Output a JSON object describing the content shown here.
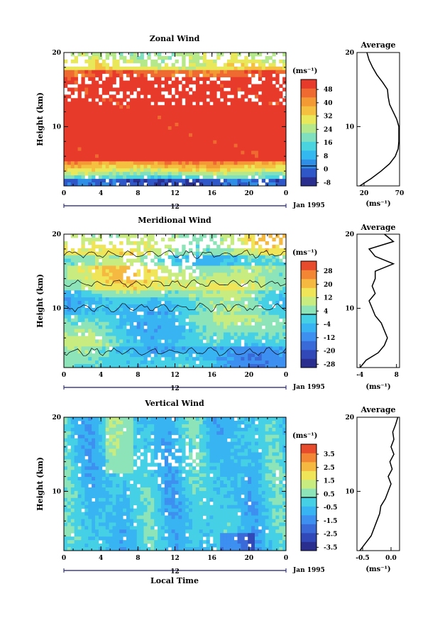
{
  "figure": {
    "xlabel": "Local Time",
    "date_label": "Jan 1995",
    "midday_marker": "12"
  },
  "colors": {
    "colorbar_zonal": [
      "#2a2f8f",
      "#2f57c8",
      "#2f8ee6",
      "#34b8f0",
      "#49d4e0",
      "#7fe0c0",
      "#b5e88a",
      "#e8e85a",
      "#f5c040",
      "#f49a35",
      "#ee6a30",
      "#e83a2a"
    ],
    "colorbar_meridional": [
      "#2a2f8f",
      "#3148b8",
      "#3a6ad8",
      "#3d8ff0",
      "#38b4f2",
      "#45d0e6",
      "#8ce4b8",
      "#c8ec80",
      "#f0e458",
      "#f5b840",
      "#f28634",
      "#e84a2c"
    ],
    "colorbar_vertical": [
      "#2a2f8f",
      "#3148b8",
      "#3a6ad8",
      "#3d8ff0",
      "#38b4f2",
      "#45d0e6",
      "#8ce4b8",
      "#c8ec80",
      "#f0e458",
      "#f5b840",
      "#f28634",
      "#e84a2c"
    ]
  },
  "chart_data": [
    {
      "type": "heatmap",
      "title": "Zonal Wind",
      "ylabel": "Height (km)",
      "xlabel": "",
      "x_ticks": [
        "0",
        "4",
        "8",
        "12",
        "16",
        "20",
        "0"
      ],
      "y_ticks": [
        "20",
        "10"
      ],
      "xlim": [
        0,
        24
      ],
      "ylim": [
        2,
        20
      ],
      "colorbar_unit": "(ms⁻¹)",
      "colorbar_ticks": [
        "48",
        "40",
        "32",
        "24",
        "16",
        "8",
        "0",
        "-8"
      ],
      "colorbar_range": [
        -12,
        52
      ],
      "profile": {
        "title": "Average",
        "xlabel": "(ms⁻¹)",
        "x_ticks": [
          "20",
          "70"
        ],
        "xlim": [
          10,
          70
        ],
        "height": [
          2,
          3,
          4,
          5,
          6,
          7,
          8,
          9,
          10,
          11,
          12,
          13,
          14,
          15,
          16,
          17,
          18,
          19,
          20
        ],
        "values": [
          14,
          30,
          44,
          56,
          64,
          68,
          69,
          69,
          69,
          66,
          61,
          56,
          54,
          53,
          46,
          38,
          32,
          27,
          24
        ]
      }
    },
    {
      "type": "heatmap",
      "title": "Meridional Wind",
      "ylabel": "Height (km)",
      "xlabel": "",
      "x_ticks": [
        "0",
        "4",
        "8",
        "12",
        "16",
        "20",
        "0"
      ],
      "y_ticks": [
        "20",
        "10"
      ],
      "xlim": [
        0,
        24
      ],
      "ylim": [
        2,
        20
      ],
      "colorbar_unit": "(ms⁻¹)",
      "colorbar_ticks": [
        "28",
        "20",
        "12",
        "4",
        "-4",
        "-12",
        "-20",
        "-28"
      ],
      "colorbar_range": [
        -32,
        32
      ],
      "profile": {
        "title": "Average",
        "xlabel": "(ms⁻¹)",
        "x_ticks": [
          "-4",
          "8"
        ],
        "xlim": [
          -5,
          9
        ],
        "height": [
          2,
          3,
          4,
          5,
          6,
          7,
          8,
          9,
          10,
          11,
          12,
          13,
          14,
          15,
          16,
          17,
          18,
          19,
          20
        ],
        "values": [
          -4,
          -2,
          2,
          4,
          5,
          4,
          3,
          1,
          0,
          -1,
          1,
          0,
          1,
          1,
          7,
          1,
          -1,
          7,
          4
        ]
      }
    },
    {
      "type": "heatmap",
      "title": "Vertical Wind",
      "ylabel": "Height (km)",
      "xlabel": "Local Time",
      "x_ticks": [
        "0",
        "4",
        "8",
        "12",
        "16",
        "20",
        "0"
      ],
      "y_ticks": [
        "20",
        "10"
      ],
      "xlim": [
        0,
        24
      ],
      "ylim": [
        2,
        20
      ],
      "colorbar_unit": "(ms⁻¹)",
      "colorbar_ticks": [
        "3.5",
        "2.5",
        "1.5",
        "0.5",
        "-0.5",
        "-1.5",
        "-2.5",
        "-3.5"
      ],
      "colorbar_range": [
        -4,
        4
      ],
      "profile": {
        "title": "Average",
        "xlabel": "(ms⁻¹)",
        "x_ticks": [
          "-0.5",
          "0.0"
        ],
        "xlim": [
          -0.6,
          0.15
        ],
        "height": [
          2,
          3,
          4,
          5,
          6,
          7,
          8,
          9,
          10,
          11,
          12,
          13,
          14,
          15,
          16,
          17,
          18,
          19,
          20
        ],
        "values": [
          -0.55,
          -0.45,
          -0.35,
          -0.3,
          -0.25,
          -0.2,
          -0.18,
          -0.1,
          -0.05,
          0.0,
          -0.05,
          0.02,
          -0.02,
          0.05,
          0.0,
          0.05,
          0.03,
          0.08,
          0.12
        ]
      }
    }
  ]
}
